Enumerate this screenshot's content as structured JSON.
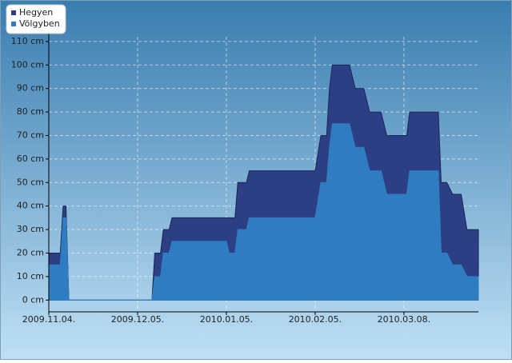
{
  "chart_data": {
    "type": "area",
    "x": [
      "2009.11.04.",
      "2009.11.08.",
      "2009.11.09.",
      "2009.11.10.",
      "2009.11.11.",
      "2009.12.10.",
      "2009.12.11.",
      "2009.12.13.",
      "2009.12.14.",
      "2009.12.16.",
      "2009.12.17.",
      "2010.01.05.",
      "2010.01.06.",
      "2010.01.08.",
      "2010.01.09.",
      "2010.01.12.",
      "2010.01.13.",
      "2010.02.05.",
      "2010.02.07.",
      "2010.02.09.",
      "2010.02.10.",
      "2010.02.11.",
      "2010.02.17.",
      "2010.02.19.",
      "2010.02.22.",
      "2010.02.24.",
      "2010.02.28.",
      "2010.03.02.",
      "2010.03.09.",
      "2010.03.10.",
      "2010.03.20.",
      "2010.03.21.",
      "2010.03.23.",
      "2010.03.25.",
      "2010.03.28.",
      "2010.03.30.",
      "2010.04.03."
    ],
    "series": [
      {
        "name": "Hegyen",
        "color": "#2c3f85",
        "values": [
          20,
          20,
          40,
          40,
          0,
          0,
          20,
          20,
          30,
          30,
          35,
          35,
          35,
          35,
          50,
          50,
          55,
          55,
          70,
          70,
          90,
          100,
          100,
          90,
          90,
          80,
          80,
          70,
          70,
          80,
          80,
          50,
          50,
          45,
          45,
          30,
          30
        ]
      },
      {
        "name": "Völgyben",
        "color": "#2f7cc0",
        "values": [
          15,
          15,
          35,
          35,
          0,
          0,
          10,
          10,
          20,
          20,
          25,
          25,
          20,
          20,
          30,
          30,
          35,
          35,
          50,
          50,
          65,
          75,
          75,
          65,
          65,
          55,
          55,
          45,
          45,
          55,
          55,
          20,
          20,
          15,
          15,
          10,
          10
        ]
      }
    ],
    "xlim": [
      "2009.11.04.",
      "2010.04.03."
    ],
    "xticks": [
      "2009.11.04.",
      "2009.12.05.",
      "2010.01.05.",
      "2010.02.05.",
      "2010.03.08."
    ],
    "ylim": [
      -5,
      112
    ],
    "yticks": [
      {
        "value": 0,
        "label": "0 cm"
      },
      {
        "value": 10,
        "label": "10 cm"
      },
      {
        "value": 20,
        "label": "20 cm"
      },
      {
        "value": 30,
        "label": "30 cm"
      },
      {
        "value": 40,
        "label": "40 cm"
      },
      {
        "value": 50,
        "label": "50 cm"
      },
      {
        "value": 60,
        "label": "60 cm"
      },
      {
        "value": 70,
        "label": "70 cm"
      },
      {
        "value": 80,
        "label": "80 cm"
      },
      {
        "value": 90,
        "label": "90 cm"
      },
      {
        "value": 100,
        "label": "100 cm"
      },
      {
        "value": 110,
        "label": "110 cm"
      }
    ],
    "grid": true,
    "legend": "top-left"
  }
}
